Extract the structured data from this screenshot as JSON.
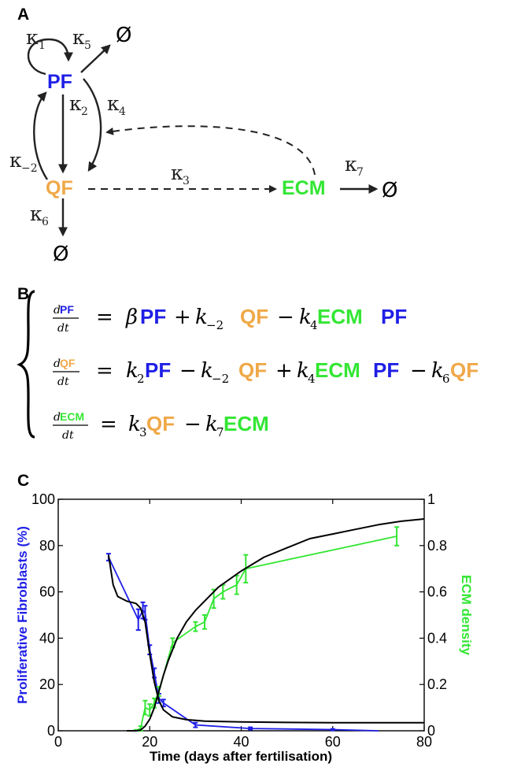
{
  "colors": {
    "pf": "#1f1fe6",
    "qf": "#f0a848",
    "ecm": "#33e633",
    "model": "#000000"
  },
  "panels": {
    "a": "A",
    "b": "B",
    "c": "C"
  },
  "diagram": {
    "pf": "PF",
    "qf": "QF",
    "ecm": "ECM",
    "empty_set": "Ø",
    "kappa": "κ",
    "k1": "1",
    "k2": "2",
    "km2": "−2",
    "k3": "3",
    "k4": "4",
    "k5": "5",
    "k6": "6",
    "k7": "7"
  },
  "equations": {
    "d": "d",
    "dt": "dt",
    "eq1": {
      "pf1": "PF",
      "beta": "β",
      "k": "k",
      "sub_m2": "−2",
      "qf": "QF",
      "sub4": "4",
      "ecm": "ECM",
      "pf2": "PF"
    },
    "eq2": {
      "k": "k",
      "sub2": "2",
      "pf1": "PF",
      "sub_m2": "−2",
      "qf1": "QF",
      "sub4": "4",
      "ecm": "ECM",
      "pf2": "PF",
      "sub6": "6",
      "qf2": "QF"
    },
    "eq3": {
      "k": "k",
      "sub3": "3",
      "qf": "QF",
      "sub7": "7",
      "ecm": "ECM"
    },
    "ops": {
      "eq": "=",
      "plus": "+",
      "minus": "−"
    }
  },
  "chart_data": {
    "type": "line",
    "xlabel": "Time (days after fertilisation)",
    "ylabel_left": "Proliferative Fibroblasts (%)",
    "ylabel_right": "ECM density",
    "xlim": [
      0,
      80
    ],
    "ylim_left": [
      0,
      100
    ],
    "ylim_right": [
      0,
      1
    ],
    "x_ticks": [
      0,
      20,
      40,
      60,
      80
    ],
    "y_left_ticks": [
      0,
      20,
      40,
      60,
      80,
      100
    ],
    "y_right_ticks": [
      0,
      0.2,
      0.4,
      0.6,
      0.8,
      1
    ],
    "y_right_tick_labels": [
      "0",
      "0.2",
      "0.4",
      "0.6",
      "0.8",
      "1"
    ],
    "grid": false,
    "series": [
      {
        "axis": "left",
        "color": "#1f1fe6",
        "x": [
          11,
          17.5,
          18.5,
          19,
          20,
          21,
          22,
          23,
          30,
          42,
          60,
          70
        ],
        "y": [
          75,
          48,
          52,
          51,
          35,
          25,
          14,
          12,
          2.5,
          1,
          0.5,
          0
        ],
        "err": [
          1.5,
          4.5,
          3.5,
          3,
          2,
          2,
          2,
          1.5,
          1,
          0.5,
          0.3,
          0
        ]
      },
      {
        "axis": "right",
        "color": "#33e633",
        "x": [
          17,
          18,
          19,
          20,
          21,
          22,
          25,
          30,
          32,
          34,
          36,
          39,
          41,
          74
        ],
        "y": [
          0.002,
          0.01,
          0.1,
          0.09,
          0.12,
          0.17,
          0.38,
          0.45,
          0.47,
          0.57,
          0.6,
          0.63,
          0.7,
          0.84
        ],
        "err": [
          0.002,
          0.01,
          0.03,
          0.025,
          0.02,
          0.02,
          0.02,
          0.02,
          0.03,
          0.04,
          0.03,
          0.04,
          0.06,
          0.04
        ]
      },
      {
        "axis": "left",
        "color": "#000000",
        "x": [
          11,
          12,
          13,
          15,
          17,
          18,
          19,
          20,
          21,
          22,
          23,
          25,
          28,
          32,
          40,
          50,
          60,
          70,
          80
        ],
        "y": [
          76,
          63,
          58,
          56,
          55,
          53,
          47,
          33,
          21,
          13,
          9,
          6,
          4.8,
          4.2,
          3.8,
          3.6,
          3.5,
          3.5,
          3.5
        ]
      },
      {
        "axis": "right",
        "color": "#000000",
        "x": [
          15,
          17,
          18,
          19,
          20,
          21,
          22,
          23,
          24,
          26,
          28,
          30,
          35,
          40,
          45,
          50,
          55,
          60,
          65,
          70,
          75,
          80
        ],
        "y": [
          0,
          0,
          0.003,
          0.02,
          0.05,
          0.1,
          0.17,
          0.24,
          0.3,
          0.4,
          0.47,
          0.52,
          0.62,
          0.69,
          0.75,
          0.79,
          0.83,
          0.85,
          0.87,
          0.89,
          0.905,
          0.915
        ]
      }
    ]
  }
}
